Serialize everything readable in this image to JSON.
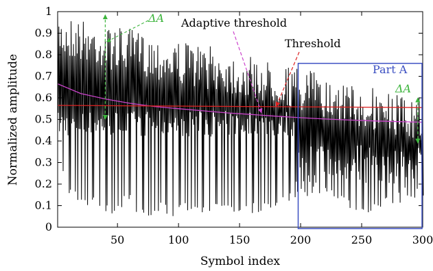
{
  "chart_data": {
    "type": "line",
    "xlabel": "Symbol index",
    "ylabel": "Normalized amplitude",
    "xlim": [
      1,
      300
    ],
    "ylim": [
      0,
      1
    ],
    "xticks": [
      50,
      100,
      150,
      200,
      250,
      300
    ],
    "yticks": [
      0,
      0.1,
      0.2,
      0.3,
      0.4,
      0.5,
      0.6,
      0.7,
      0.8,
      0.9,
      1
    ],
    "xtick_labels": [
      "50",
      "100",
      "150",
      "200",
      "250",
      "300"
    ],
    "ytick_labels": [
      "0",
      "0.1",
      "0.2",
      "0.3",
      "0.4",
      "0.5",
      "0.6",
      "0.7",
      "0.8",
      "0.9",
      "1"
    ],
    "grid": false,
    "series": [
      {
        "color": "#000000",
        "x": [
          1,
          7,
          13,
          19,
          25,
          31,
          37,
          43,
          49,
          55,
          61,
          67,
          73,
          79,
          85,
          91,
          97,
          103,
          109,
          115,
          121,
          127,
          133,
          139,
          145,
          151,
          157,
          163,
          169,
          175,
          181,
          187,
          193,
          199,
          205,
          211,
          217,
          223,
          229,
          235,
          241,
          247,
          253,
          259,
          265,
          271,
          277,
          283,
          289,
          295,
          300
        ],
        "peaks": [
          0.99,
          0.98,
          0.98,
          0.97,
          0.96,
          0.95,
          0.94,
          0.93,
          0.93,
          0.92,
          0.92,
          0.91,
          0.9,
          0.89,
          0.88,
          0.87,
          0.87,
          0.86,
          0.86,
          0.85,
          0.84,
          0.84,
          0.83,
          0.82,
          0.81,
          0.8,
          0.79,
          0.79,
          0.78,
          0.77,
          0.77,
          0.76,
          0.75,
          0.74,
          0.73,
          0.72,
          0.71,
          0.7,
          0.69,
          0.68,
          0.68,
          0.67,
          0.66,
          0.65,
          0.64,
          0.63,
          0.62,
          0.62,
          0.62,
          0.61,
          0.6
        ],
        "troughs": [
          0.42,
          0.14,
          0.13,
          0.1,
          0.1,
          0.12,
          0.05,
          0.06,
          0.04,
          0.12,
          0.1,
          0.04,
          0.03,
          0.04,
          0.07,
          0.05,
          0.05,
          0.06,
          0.08,
          0.07,
          0.06,
          0.06,
          0.07,
          0.05,
          0.06,
          0.05,
          0.06,
          0.07,
          0.07,
          0.08,
          0.08,
          0.1,
          0.12,
          0.13,
          0.14,
          0.14,
          0.14,
          0.12,
          0.12,
          0.1,
          0.08,
          0.07,
          0.07,
          0.06,
          0.07,
          0.08,
          0.1,
          0.12,
          0.13,
          0.14,
          0.14
        ]
      },
      {
        "name": "Adaptive threshold",
        "color": "#cc44cc",
        "x": [
          1,
          20,
          40,
          60,
          80,
          100,
          120,
          140,
          160,
          180,
          200,
          220,
          240,
          260,
          280,
          300
        ],
        "y": [
          0.665,
          0.62,
          0.595,
          0.575,
          0.56,
          0.55,
          0.54,
          0.53,
          0.523,
          0.515,
          0.508,
          0.502,
          0.497,
          0.493,
          0.49,
          0.487
        ]
      },
      {
        "name": "Threshold",
        "color": "#dd2222",
        "x": [
          1,
          300
        ],
        "y": [
          0.565,
          0.555
        ]
      }
    ],
    "annotations": [
      {
        "text": "Adaptive threshold",
        "color": "#000000",
        "arrow_color": "#cc44cc",
        "target": [
          168,
          0.53
        ]
      },
      {
        "text": "Threshold",
        "color": "#000000",
        "arrow_color": "#dd2222",
        "target": [
          180,
          0.56
        ]
      },
      {
        "text": "ΔA",
        "color": "#3cb43c",
        "target": [
          40,
          0.99
        ]
      },
      {
        "text": "ΔA",
        "color": "#3cb43c",
        "target": [
          296,
          0.6
        ]
      },
      {
        "text": "Part A",
        "color": "#3b4fc2",
        "region": {
          "x": [
            198,
            300
          ],
          "y": [
            0,
            0.76
          ]
        }
      }
    ]
  }
}
